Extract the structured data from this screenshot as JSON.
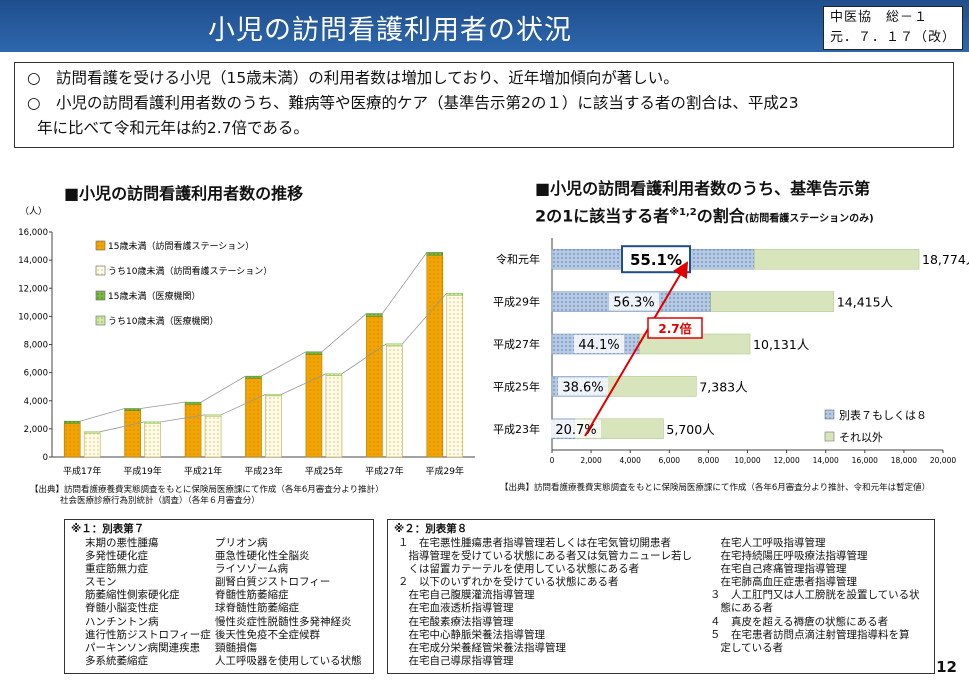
{
  "header": {
    "title": "小児の訪問看護利用者の状況",
    "doc_code_line1": "中医協　総－１",
    "doc_code_line2": "元．７．１７（改）"
  },
  "summary": {
    "line1": "○　訪問看護を受ける小児（15歳未満）の利用者数は増加しており、近年増加傾向が著しい。",
    "line2": "○　小児の訪問看護利用者数のうち、難病等や医療的ケア（基準告示第2の１）に該当する者の割合は、平成23",
    "line3": "年に比べて令和元年は約2.7倍である。"
  },
  "left_chart": {
    "title": "■小児の訪問看護利用者数の推移",
    "unit": "（人）",
    "source_line1": "【出典】訪問看護療養費実態調査をもとに保険局医療課にて作成（各年6月審査分より推計）",
    "source_line2": "社会医療診療行為別統計（調査）（各年６月審査分）"
  },
  "right_chart": {
    "title_line1": "■小児の訪問看護利用者数のうち、基準告示第",
    "title_line2a": "2の1に該当する者",
    "title_sup": "※1,2",
    "title_line2b": "の割合",
    "title_small": "(訪問看護ステーションのみ)",
    "callout": "2.7倍",
    "source": "【出典】訪問看護療養費実態調査をもとに保険局医療課にて作成（各年6月審査分より推計、令和元年は暫定値）"
  },
  "notes1": {
    "head": "※１：別表第７",
    "col1": [
      "末期の悪性腫瘍",
      "多発性硬化症",
      "重症筋無力症",
      "スモン",
      "筋萎縮性側索硬化症",
      "脊髄小脳変性症",
      "ハンチントン病",
      "進行性筋ジストロフィー症",
      "パーキンソン病関連疾患",
      "多系統萎縮症"
    ],
    "col2": [
      "プリオン病",
      "亜急性硬化性全脳炎",
      "ライソゾーム病",
      "副腎白質ジストロフィー",
      "脊髄性筋萎縮症",
      "球脊髄性筋萎縮症",
      "慢性炎症性脱髄性多発神経炎",
      "後天性免疫不全症候群",
      "頸髄損傷",
      "人工呼吸器を使用している状態"
    ]
  },
  "notes2": {
    "head": "※２：別表第８",
    "col1": [
      "１　在宅悪性腫瘍患者指導管理若しくは在宅気管切開患者",
      "　指導管理を受けている状態にある者又は気管カニューレ若し",
      "　くは留置カテーテルを使用している状態にある者",
      "２　以下のいずれかを受けている状態にある者",
      "　在宅自己腹膜灌流指導管理",
      "　在宅血液透析指導管理",
      "　在宅酸素療法指導管理",
      "　在宅中心静脈栄養法指導管理",
      "　在宅成分栄養経管栄養法指導管理",
      "　在宅自己導尿指導管理"
    ],
    "col2": [
      "　在宅人工呼吸指導管理",
      "　在宅持続陽圧呼吸療法指導管理",
      "　在宅自己疼痛管理指導管理",
      "　在宅肺高血圧症患者指導管理",
      "３　人工肛門又は人工膀胱を設置している状",
      "　態にある者",
      "４　真皮を超える褥瘡の状態にある者",
      "５　在宅患者訪問点滴注射管理指導料を算",
      "　定している者"
    ]
  },
  "page_number": "12",
  "chart_data": [
    {
      "type": "bar",
      "title": "■小児の訪問看護利用者数の推移",
      "ylabel": "（人）",
      "categories": [
        "平成17年",
        "平成19年",
        "平成21年",
        "平成23年",
        "平成25年",
        "平成27年",
        "平成29年"
      ],
      "ylim": [
        0,
        16000
      ],
      "yticks": [
        "0",
        "2,000",
        "4,000",
        "6,000",
        "8,000",
        "10,000",
        "12,000",
        "14,000",
        "16,000"
      ],
      "grid": false,
      "legend_position": "top-left",
      "series": [
        {
          "name": "15歳未満（訪問看護ステーション）",
          "values": [
            2400,
            3300,
            3750,
            5600,
            7300,
            10000,
            14350
          ],
          "color": "#f2a500",
          "pattern": "dots"
        },
        {
          "name": "うち10歳未満（訪問看護ステーション）",
          "values": [
            1700,
            2400,
            2900,
            4350,
            5800,
            7900,
            11500
          ],
          "color": "#fff7d6",
          "pattern": "dots"
        },
        {
          "name": "15歳未満（医療機関）",
          "values": [
            150,
            150,
            150,
            150,
            180,
            200,
            200
          ],
          "color": "#7ab648",
          "pattern": "dots"
        },
        {
          "name": "うち10歳未満（医療機関）",
          "values": [
            100,
            100,
            100,
            100,
            120,
            150,
            150
          ],
          "color": "#b9dd8c",
          "pattern": "dots"
        }
      ]
    },
    {
      "type": "bar",
      "orientation": "horizontal",
      "stacked": true,
      "categories": [
        "令和元年",
        "平成29年",
        "平成27年",
        "平成25年",
        "平成23年"
      ],
      "xlim": [
        0,
        20000
      ],
      "xticks": [
        "0",
        "2,000",
        "4,000",
        "6,000",
        "8,000",
        "10,000",
        "12,000",
        "14,000",
        "16,000",
        "18,000",
        "20,000"
      ],
      "totals": [
        18774,
        14415,
        10131,
        7383,
        5700
      ],
      "total_labels": [
        "18,774人",
        "14,415人",
        "10,131人",
        "7,383人",
        "5,700人"
      ],
      "percent_labels": [
        "55.1%",
        "56.3%",
        "44.1%",
        "38.6%",
        "20.7%"
      ],
      "legend_position": "bottom-right",
      "series": [
        {
          "name": "別表７もしくは８",
          "values": [
            10344,
            8116,
            4468,
            2850,
            1180
          ],
          "color": "#95b3d7"
        },
        {
          "name": "それ以外",
          "values": [
            8430,
            6299,
            5663,
            4533,
            4520
          ],
          "color": "#d8e4bc"
        }
      ]
    }
  ]
}
